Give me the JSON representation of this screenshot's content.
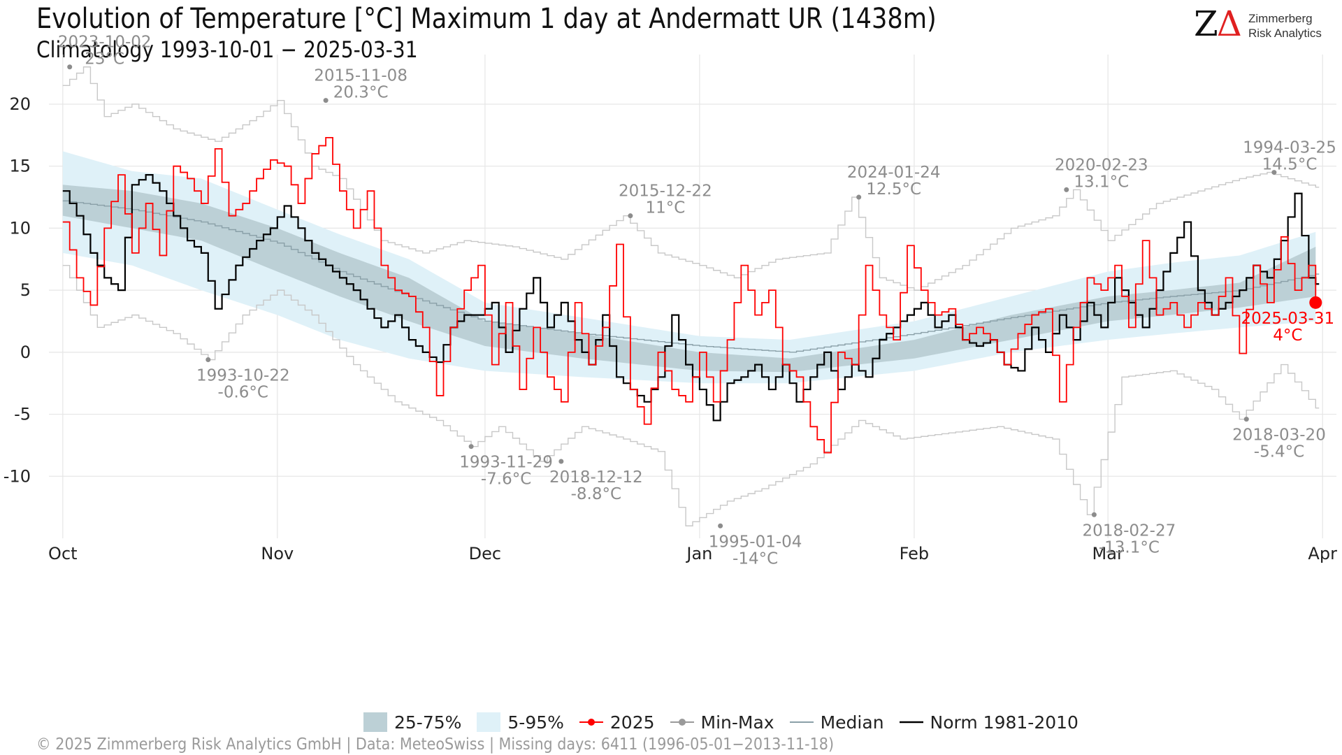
{
  "title": "Evolution of Temperature [°C] Maximum 1 day at Andermatt  UR (1438m)",
  "subtitle": "Climatology 1993-10-01 − 2025-03-31",
  "logo": {
    "mark_z": "Z",
    "mark_delta": "Δ",
    "line1": "Zimmerberg",
    "line2": "Risk Analytics"
  },
  "footer": "©  2025 Zimmerberg Risk Analytics GmbH | Data: MeteoSwiss | Missing days: 6411 (1996-05-01−2013-11-18)",
  "legend": {
    "band_iqr": "25-75%",
    "band_90": "5-95%",
    "current": "2025",
    "minmax": "Min-Max",
    "median": "Median",
    "norm": "Norm 1981-2010"
  },
  "colors": {
    "band_iqr": "#bcd0d6",
    "band_90": "#dff1f8",
    "current": "#ff0000",
    "minmax": "#c8c8c8",
    "median": "#8aa0a8",
    "norm": "#000000",
    "annotation": "#8c8c8c",
    "grid": "#e6e6e6"
  },
  "chart_data": {
    "type": "line",
    "x_axis": {
      "ticks": [
        "Oct",
        "Nov",
        "Dec",
        "Jan",
        "Feb",
        "Mar",
        "Apr"
      ],
      "tick_days": [
        0,
        31,
        61,
        92,
        123,
        151,
        182
      ],
      "range_days": [
        -2,
        184
      ]
    },
    "y_axis": {
      "ticks": [
        -10,
        -5,
        0,
        5,
        10,
        15,
        20
      ],
      "ylim": [
        -15,
        24
      ]
    },
    "grid": true,
    "legend_position": "bottom",
    "series_anchors": {
      "q95": [
        [
          0,
          16.2
        ],
        [
          10,
          14.6
        ],
        [
          20,
          14
        ],
        [
          31,
          11.5
        ],
        [
          40,
          9.5
        ],
        [
          50,
          7.5
        ],
        [
          61,
          4
        ],
        [
          75,
          2.8
        ],
        [
          92,
          1.3
        ],
        [
          105,
          1
        ],
        [
          123,
          2.5
        ],
        [
          137,
          4.5
        ],
        [
          151,
          6.5
        ],
        [
          160,
          7.2
        ],
        [
          170,
          7.8
        ],
        [
          181,
          9.7
        ]
      ],
      "q75": [
        [
          0,
          13.5
        ],
        [
          10,
          13
        ],
        [
          20,
          12
        ],
        [
          31,
          10
        ],
        [
          40,
          8
        ],
        [
          50,
          6
        ],
        [
          61,
          2.5
        ],
        [
          75,
          1.5
        ],
        [
          92,
          0
        ],
        [
          105,
          -0.5
        ],
        [
          123,
          1
        ],
        [
          137,
          3
        ],
        [
          151,
          4.5
        ],
        [
          160,
          5
        ],
        [
          170,
          5.6
        ],
        [
          181,
          8.5
        ]
      ],
      "q25": [
        [
          0,
          11
        ],
        [
          10,
          10
        ],
        [
          20,
          9
        ],
        [
          31,
          6.5
        ],
        [
          40,
          4.5
        ],
        [
          50,
          2.5
        ],
        [
          61,
          0.5
        ],
        [
          75,
          -0.5
        ],
        [
          92,
          -1.5
        ],
        [
          105,
          -1.6
        ],
        [
          123,
          -0.5
        ],
        [
          137,
          1
        ],
        [
          151,
          2.5
        ],
        [
          160,
          3
        ],
        [
          170,
          3.6
        ],
        [
          181,
          4.5
        ]
      ],
      "q05": [
        [
          0,
          8
        ],
        [
          10,
          7
        ],
        [
          20,
          5
        ],
        [
          31,
          3
        ],
        [
          40,
          1
        ],
        [
          50,
          -0.5
        ],
        [
          61,
          -1.5
        ],
        [
          75,
          -2
        ],
        [
          92,
          -2.5
        ],
        [
          105,
          -2.5
        ],
        [
          123,
          -1.5
        ],
        [
          137,
          0
        ],
        [
          151,
          1
        ],
        [
          160,
          1.5
        ],
        [
          170,
          2
        ],
        [
          181,
          2.5
        ]
      ],
      "median": [
        [
          0,
          12.2
        ],
        [
          10,
          11.5
        ],
        [
          20,
          10.5
        ],
        [
          31,
          8.8
        ],
        [
          40,
          6.5
        ],
        [
          50,
          4.5
        ],
        [
          61,
          2.5
        ],
        [
          75,
          1.5
        ],
        [
          92,
          0.5
        ],
        [
          105,
          0
        ],
        [
          123,
          1.5
        ],
        [
          137,
          2.8
        ],
        [
          151,
          4
        ],
        [
          160,
          4.5
        ],
        [
          170,
          5
        ],
        [
          181,
          6.3
        ]
      ],
      "max": [
        [
          0,
          21.5
        ],
        [
          3,
          23
        ],
        [
          6,
          19
        ],
        [
          10,
          20
        ],
        [
          16,
          18
        ],
        [
          22,
          17
        ],
        [
          28,
          19
        ],
        [
          31,
          20.3
        ],
        [
          36,
          15
        ],
        [
          40,
          14
        ],
        [
          46,
          9
        ],
        [
          52,
          8
        ],
        [
          58,
          9
        ],
        [
          65,
          8.5
        ],
        [
          72,
          7.5
        ],
        [
          81,
          11
        ],
        [
          86,
          8
        ],
        [
          92,
          7
        ],
        [
          97,
          6
        ],
        [
          103,
          7.5
        ],
        [
          110,
          8
        ],
        [
          114,
          12.5
        ],
        [
          118,
          6
        ],
        [
          123,
          5
        ],
        [
          130,
          7
        ],
        [
          137,
          10
        ],
        [
          143,
          11
        ],
        [
          146,
          13.1
        ],
        [
          151,
          9
        ],
        [
          158,
          12
        ],
        [
          164,
          13
        ],
        [
          170,
          14
        ],
        [
          174,
          14.5
        ],
        [
          181,
          13.3
        ]
      ],
      "min": [
        [
          0,
          7
        ],
        [
          5,
          2
        ],
        [
          10,
          3
        ],
        [
          16,
          1.5
        ],
        [
          21,
          -0.6
        ],
        [
          26,
          3
        ],
        [
          31,
          5
        ],
        [
          36,
          3
        ],
        [
          42,
          -1
        ],
        [
          48,
          -4
        ],
        [
          54,
          -5.5
        ],
        [
          59,
          -7.6
        ],
        [
          63,
          -6
        ],
        [
          69,
          -8.8
        ],
        [
          75,
          -6
        ],
        [
          81,
          -7
        ],
        [
          86,
          -8
        ],
        [
          90,
          -14
        ],
        [
          96,
          -12
        ],
        [
          101,
          -11
        ],
        [
          108,
          -9
        ],
        [
          115,
          -5.5
        ],
        [
          121,
          -7
        ],
        [
          128,
          -6.5
        ],
        [
          135,
          -6
        ],
        [
          143,
          -7
        ],
        [
          148,
          -13.1
        ],
        [
          153,
          -2
        ],
        [
          160,
          -1.5
        ],
        [
          166,
          -3
        ],
        [
          170,
          -5.4
        ],
        [
          176,
          -1
        ],
        [
          181,
          -4.5
        ]
      ],
      "norm": [
        [
          0,
          13
        ],
        [
          2,
          11
        ],
        [
          4,
          8
        ],
        [
          6,
          6
        ],
        [
          8,
          5
        ],
        [
          10,
          13.5
        ],
        [
          12,
          14.3
        ],
        [
          14,
          13
        ],
        [
          16,
          11
        ],
        [
          18,
          9
        ],
        [
          20,
          8
        ],
        [
          22,
          3.5
        ],
        [
          25,
          7
        ],
        [
          28,
          9
        ],
        [
          30,
          10
        ],
        [
          32,
          11.8
        ],
        [
          34,
          10
        ],
        [
          36,
          8
        ],
        [
          38,
          7
        ],
        [
          40,
          6
        ],
        [
          42,
          5
        ],
        [
          44,
          3.5
        ],
        [
          46,
          2
        ],
        [
          48,
          3
        ],
        [
          50,
          1
        ],
        [
          52,
          0
        ],
        [
          54,
          -0.8
        ],
        [
          56,
          2
        ],
        [
          58,
          3
        ],
        [
          60,
          3
        ],
        [
          62,
          4
        ],
        [
          64,
          0
        ],
        [
          66,
          3.5
        ],
        [
          68,
          6
        ],
        [
          70,
          2
        ],
        [
          72,
          4
        ],
        [
          74,
          1
        ],
        [
          76,
          -1
        ],
        [
          78,
          3
        ],
        [
          80,
          -2
        ],
        [
          82,
          -3
        ],
        [
          84,
          -4
        ],
        [
          86,
          -2
        ],
        [
          88,
          3
        ],
        [
          90,
          -1
        ],
        [
          92,
          -3
        ],
        [
          94,
          -5.5
        ],
        [
          96,
          -2.5
        ],
        [
          98,
          -2
        ],
        [
          100,
          -1
        ],
        [
          102,
          -3
        ],
        [
          104,
          -1
        ],
        [
          106,
          -4
        ],
        [
          108,
          -2
        ],
        [
          110,
          0
        ],
        [
          112,
          -3
        ],
        [
          114,
          -1
        ],
        [
          116,
          -2
        ],
        [
          118,
          1
        ],
        [
          120,
          2
        ],
        [
          122,
          3
        ],
        [
          124,
          4
        ],
        [
          126,
          2
        ],
        [
          128,
          3
        ],
        [
          130,
          1
        ],
        [
          132,
          0.5
        ],
        [
          134,
          1
        ],
        [
          136,
          -1
        ],
        [
          138,
          -1.5
        ],
        [
          140,
          2
        ],
        [
          142,
          0
        ],
        [
          144,
          3
        ],
        [
          146,
          1
        ],
        [
          148,
          4
        ],
        [
          150,
          2
        ],
        [
          152,
          6
        ],
        [
          154,
          4
        ],
        [
          156,
          2
        ],
        [
          158,
          5
        ],
        [
          160,
          8
        ],
        [
          162,
          10.5
        ],
        [
          164,
          5
        ],
        [
          166,
          3
        ],
        [
          168,
          4
        ],
        [
          170,
          5
        ],
        [
          172,
          7
        ],
        [
          174,
          6
        ],
        [
          176,
          9
        ],
        [
          178,
          12.8
        ],
        [
          180,
          6
        ],
        [
          182,
          5
        ]
      ],
      "current": [
        [
          0,
          10.5
        ],
        [
          2,
          6
        ],
        [
          4,
          3.8
        ],
        [
          6,
          10
        ],
        [
          8,
          14.3
        ],
        [
          10,
          8
        ],
        [
          12,
          12
        ],
        [
          14,
          7.8
        ],
        [
          16,
          15
        ],
        [
          18,
          14
        ],
        [
          20,
          12
        ],
        [
          22,
          16.4
        ],
        [
          24,
          11
        ],
        [
          26,
          12
        ],
        [
          28,
          14
        ],
        [
          30,
          15.5
        ],
        [
          32,
          15
        ],
        [
          34,
          12
        ],
        [
          36,
          16
        ],
        [
          38,
          17.3
        ],
        [
          40,
          13
        ],
        [
          42,
          10
        ],
        [
          44,
          13
        ],
        [
          46,
          7
        ],
        [
          48,
          5
        ],
        [
          50,
          4.5
        ],
        [
          52,
          2
        ],
        [
          54,
          -3.5
        ],
        [
          56,
          2
        ],
        [
          58,
          5
        ],
        [
          60,
          7
        ],
        [
          62,
          -1
        ],
        [
          64,
          4
        ],
        [
          66,
          -3
        ],
        [
          68,
          2
        ],
        [
          70,
          -2
        ],
        [
          72,
          -4
        ],
        [
          74,
          4
        ],
        [
          76,
          -1
        ],
        [
          78,
          2
        ],
        [
          80,
          8.7
        ],
        [
          82,
          -3
        ],
        [
          84,
          -5.8
        ],
        [
          86,
          0
        ],
        [
          88,
          -3
        ],
        [
          90,
          -4
        ],
        [
          92,
          0
        ],
        [
          94,
          -4
        ],
        [
          96,
          1
        ],
        [
          98,
          7
        ],
        [
          100,
          3
        ],
        [
          102,
          5
        ],
        [
          104,
          -1
        ],
        [
          106,
          -2
        ],
        [
          108,
          -6
        ],
        [
          110,
          -8.1
        ],
        [
          112,
          0
        ],
        [
          114,
          -1
        ],
        [
          116,
          7
        ],
        [
          118,
          3
        ],
        [
          120,
          1
        ],
        [
          122,
          8.6
        ],
        [
          124,
          5
        ],
        [
          126,
          3
        ],
        [
          128,
          3.5
        ],
        [
          130,
          1
        ],
        [
          132,
          2
        ],
        [
          134,
          1
        ],
        [
          136,
          -1
        ],
        [
          138,
          1.5
        ],
        [
          140,
          3
        ],
        [
          142,
          3.5
        ],
        [
          144,
          -4
        ],
        [
          146,
          2
        ],
        [
          148,
          6
        ],
        [
          150,
          5
        ],
        [
          152,
          7
        ],
        [
          154,
          2
        ],
        [
          156,
          9
        ],
        [
          158,
          3
        ],
        [
          160,
          4
        ],
        [
          162,
          2
        ],
        [
          164,
          4
        ],
        [
          166,
          3
        ],
        [
          168,
          6
        ],
        [
          170,
          -0.1
        ],
        [
          172,
          7
        ],
        [
          174,
          4
        ],
        [
          176,
          9.3
        ],
        [
          178,
          5
        ],
        [
          180,
          7
        ],
        [
          181,
          4
        ]
      ]
    },
    "annotations": {
      "max": [
        {
          "day": 1,
          "value": 23,
          "date": "2023-10-02",
          "label": "23°C"
        },
        {
          "day": 38,
          "value": 20.3,
          "date": "2015-11-08",
          "label": "20.3°C"
        },
        {
          "day": 82,
          "value": 11,
          "date": "2015-12-22",
          "label": "11°C"
        },
        {
          "day": 115,
          "value": 12.5,
          "date": "2024-01-24",
          "label": "12.5°C"
        },
        {
          "day": 145,
          "value": 13.1,
          "date": "2020-02-23",
          "label": "13.1°C"
        },
        {
          "day": 175,
          "value": 14.5,
          "date": "1994-03-25",
          "label": "14.5°C"
        }
      ],
      "min": [
        {
          "day": 21,
          "value": -0.6,
          "date": "1993-10-22",
          "label": "-0.6°C"
        },
        {
          "day": 59,
          "value": -7.6,
          "date": "1993-11-29",
          "label": "-7.6°C"
        },
        {
          "day": 72,
          "value": -8.8,
          "date": "2018-12-12",
          "label": "-8.8°C"
        },
        {
          "day": 95,
          "value": -14,
          "date": "1995-01-04",
          "label": "-14°C"
        },
        {
          "day": 149,
          "value": -13.1,
          "date": "2018-02-27",
          "label": "-13.1°C"
        },
        {
          "day": 171,
          "value": -5.4,
          "date": "2018-03-20",
          "label": "-5.4°C"
        }
      ],
      "current": {
        "day": 181,
        "value": 4,
        "date": "2025-03-31",
        "label": "4°C"
      }
    }
  }
}
